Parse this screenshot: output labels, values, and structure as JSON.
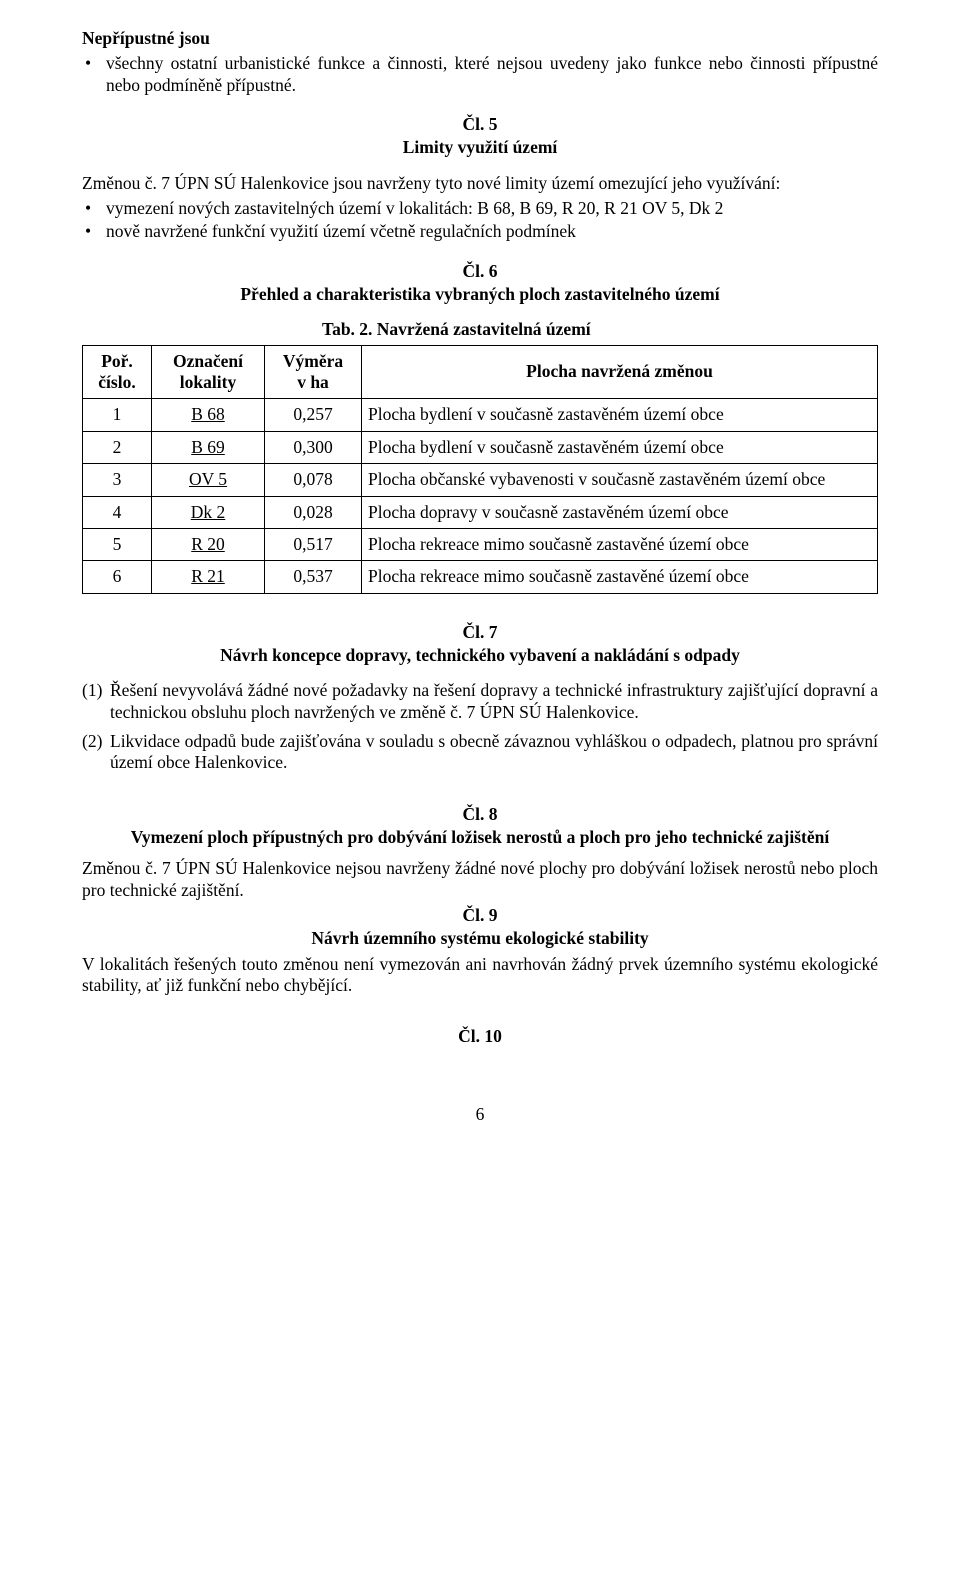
{
  "section_nepripustne": {
    "heading": "Nepřípustné jsou",
    "items": [
      "všechny ostatní urbanistické funkce a činnosti, které nejsou uvedeny jako funkce nebo činnosti přípustné nebo podmíněně přípustné."
    ]
  },
  "art5": {
    "num": "Čl. 5",
    "title": "Limity využití území",
    "lead": "Změnou č. 7 ÚPN SÚ Halenkovice jsou navrženy tyto nové limity území omezující jeho využívání:",
    "items": [
      "vymezení nových zastavitelných území v lokalitách: B 68, B 69, R 20, R 21 OV 5, Dk 2",
      "nově navržené funkční využití území včetně regulačních podmínek"
    ]
  },
  "art6": {
    "num": "Čl. 6",
    "title": "Přehled a charakteristika vybraných ploch zastavitelného území",
    "table": {
      "caption": "Tab. 2. Navržená zastavitelná území",
      "headers": {
        "por": [
          "Poř.",
          "číslo."
        ],
        "ozn": [
          "Označení",
          "lokality"
        ],
        "vym": [
          "Výměra",
          "v ha"
        ],
        "plo": "Plocha navržená změnou"
      },
      "rows": [
        {
          "por": "1",
          "ozn": "B 68",
          "vym": "0,257",
          "plo": "Plocha bydlení v současně zastavěném území obce"
        },
        {
          "por": "2",
          "ozn": "B 69",
          "vym": "0,300",
          "plo": "Plocha bydlení v současně zastavěném území obce"
        },
        {
          "por": "3",
          "ozn": "OV 5",
          "vym": "0,078",
          "plo": "Plocha občanské vybavenosti v současně zastavěném území obce"
        },
        {
          "por": "4",
          "ozn": "Dk 2",
          "vym": "0,028",
          "plo": "Plocha dopravy v současně zastavěném území obce"
        },
        {
          "por": "5",
          "ozn": "R 20",
          "vym": "0,517",
          "plo": "Plocha rekreace mimo současně zastavěné území obce"
        },
        {
          "por": "6",
          "ozn": "R 21",
          "vym": "0,537",
          "plo": "Plocha rekreace mimo současně zastavěné území obce"
        }
      ]
    }
  },
  "art7": {
    "num": "Čl. 7",
    "title": "Návrh koncepce dopravy, technického vybavení a nakládání s odpady",
    "items": [
      {
        "num": "(1)",
        "text": "Řešení nevyvolává žádné nové požadavky na řešení dopravy a technické infrastruktury zajišťující dopravní a technickou obsluhu ploch navržených ve změně č. 7 ÚPN SÚ Halenkovice."
      },
      {
        "num": "(2)",
        "text": "Likvidace odpadů bude zajišťována v souladu s obecně závaznou vyhláškou o odpadech, platnou pro správní území obce Halenkovice."
      }
    ]
  },
  "art8": {
    "num": "Čl. 8",
    "title": "Vymezení ploch přípustných pro dobývání ložisek nerostů a ploch pro jeho technické zajištění",
    "text": "Změnou č. 7 ÚPN SÚ Halenkovice nejsou navrženy žádné nové plochy pro dobývání ložisek nerostů nebo ploch pro technické zajištění."
  },
  "art9": {
    "num": "Čl. 9",
    "title": "Návrh územního systému ekologické stability",
    "text": "V lokalitách řešených touto změnou není vymezován ani navrhován žádný prvek územního systému ekologické stability, ať již funkční nebo chybějící."
  },
  "art10": {
    "num": "Čl. 10"
  },
  "page_number": "6"
}
